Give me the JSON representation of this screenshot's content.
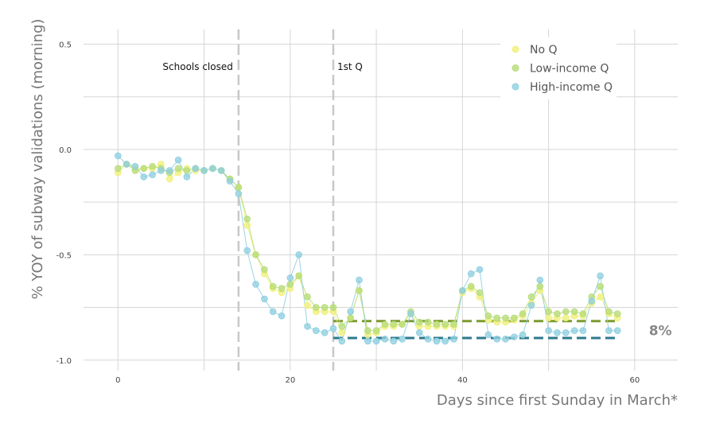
{
  "chart_data": {
    "type": "line",
    "title": "",
    "xlabel": "Days since first Sunday in March*",
    "ylabel": "% YOY of subway validations (morning)",
    "xlim": [
      -4,
      65
    ],
    "ylim": [
      -1.05,
      0.57
    ],
    "x_ticks": [
      0,
      20,
      40,
      60
    ],
    "y_ticks": [
      0.5,
      0.0,
      -0.5,
      -1.0
    ],
    "x_tick_labels": [
      "0",
      "20",
      "40",
      "60"
    ],
    "y_tick_labels": [
      "0.5",
      "0.0",
      "-0.5",
      "-1.0"
    ],
    "grid": true,
    "legend_position": "top-right",
    "vlines": [
      {
        "x": 14,
        "label": "Schools closed",
        "color": "#c8c8c8"
      },
      {
        "x": 25,
        "label": "1st Q",
        "color": "#c8c8c8"
      }
    ],
    "hlines": [
      {
        "y": -0.815,
        "x_start": 25,
        "x_end": 58,
        "color": "#7d9a2e"
      },
      {
        "y": -0.895,
        "x_start": 25,
        "x_end": 58,
        "color": "#2c7a8c"
      }
    ],
    "annotation": {
      "text": "8%",
      "x": 61,
      "y": -0.86
    },
    "x": [
      0,
      1,
      2,
      3,
      4,
      5,
      6,
      7,
      8,
      9,
      10,
      11,
      12,
      13,
      14,
      15,
      16,
      17,
      18,
      19,
      20,
      21,
      22,
      23,
      24,
      25,
      26,
      27,
      28,
      29,
      30,
      31,
      32,
      33,
      34,
      35,
      36,
      37,
      38,
      39,
      40,
      41,
      42,
      43,
      44,
      45,
      46,
      47,
      48,
      49,
      50,
      51,
      52,
      53,
      54,
      55,
      56,
      57,
      58
    ],
    "series": [
      {
        "name": "No Q",
        "color": "#f0f07a",
        "values": [
          -0.11,
          -0.07,
          -0.09,
          -0.09,
          -0.09,
          -0.07,
          -0.14,
          -0.11,
          -0.09,
          -0.1,
          -0.1,
          -0.09,
          -0.1,
          -0.14,
          -0.18,
          -0.36,
          -0.5,
          -0.59,
          -0.66,
          -0.68,
          -0.66,
          -0.6,
          -0.74,
          -0.77,
          -0.77,
          -0.77,
          -0.87,
          -0.8,
          -0.67,
          -0.88,
          -0.87,
          -0.84,
          -0.84,
          -0.83,
          -0.78,
          -0.84,
          -0.84,
          -0.84,
          -0.84,
          -0.84,
          -0.68,
          -0.66,
          -0.7,
          -0.81,
          -0.82,
          -0.82,
          -0.81,
          -0.79,
          -0.73,
          -0.67,
          -0.8,
          -0.8,
          -0.8,
          -0.79,
          -0.79,
          -0.73,
          -0.7,
          -0.78,
          -0.8
        ]
      },
      {
        "name": "Low-income Q",
        "color": "#b7dc78",
        "values": [
          -0.09,
          -0.07,
          -0.1,
          -0.09,
          -0.08,
          -0.09,
          -0.11,
          -0.09,
          -0.1,
          -0.09,
          -0.1,
          -0.09,
          -0.1,
          -0.14,
          -0.18,
          -0.33,
          -0.5,
          -0.57,
          -0.65,
          -0.66,
          -0.64,
          -0.6,
          -0.7,
          -0.75,
          -0.75,
          -0.75,
          -0.84,
          -0.8,
          -0.67,
          -0.86,
          -0.86,
          -0.83,
          -0.83,
          -0.83,
          -0.77,
          -0.82,
          -0.82,
          -0.83,
          -0.83,
          -0.83,
          -0.67,
          -0.65,
          -0.68,
          -0.79,
          -0.8,
          -0.8,
          -0.8,
          -0.78,
          -0.7,
          -0.65,
          -0.77,
          -0.78,
          -0.77,
          -0.77,
          -0.78,
          -0.7,
          -0.65,
          -0.77,
          -0.78
        ]
      },
      {
        "name": "High-income Q",
        "color": "#8fcfe0",
        "values": [
          -0.03,
          -0.07,
          -0.08,
          -0.13,
          -0.12,
          -0.1,
          -0.1,
          -0.05,
          -0.13,
          -0.09,
          -0.1,
          -0.09,
          -0.1,
          -0.15,
          -0.21,
          -0.48,
          -0.64,
          -0.71,
          -0.77,
          -0.79,
          -0.61,
          -0.5,
          -0.84,
          -0.86,
          -0.87,
          -0.85,
          -0.91,
          -0.77,
          -0.62,
          -0.91,
          -0.91,
          -0.9,
          -0.91,
          -0.9,
          -0.78,
          -0.87,
          -0.9,
          -0.91,
          -0.91,
          -0.9,
          -0.67,
          -0.59,
          -0.57,
          -0.88,
          -0.9,
          -0.9,
          -0.89,
          -0.88,
          -0.74,
          -0.62,
          -0.86,
          -0.87,
          -0.87,
          -0.86,
          -0.86,
          -0.72,
          -0.6,
          -0.86,
          -0.86
        ]
      }
    ]
  }
}
